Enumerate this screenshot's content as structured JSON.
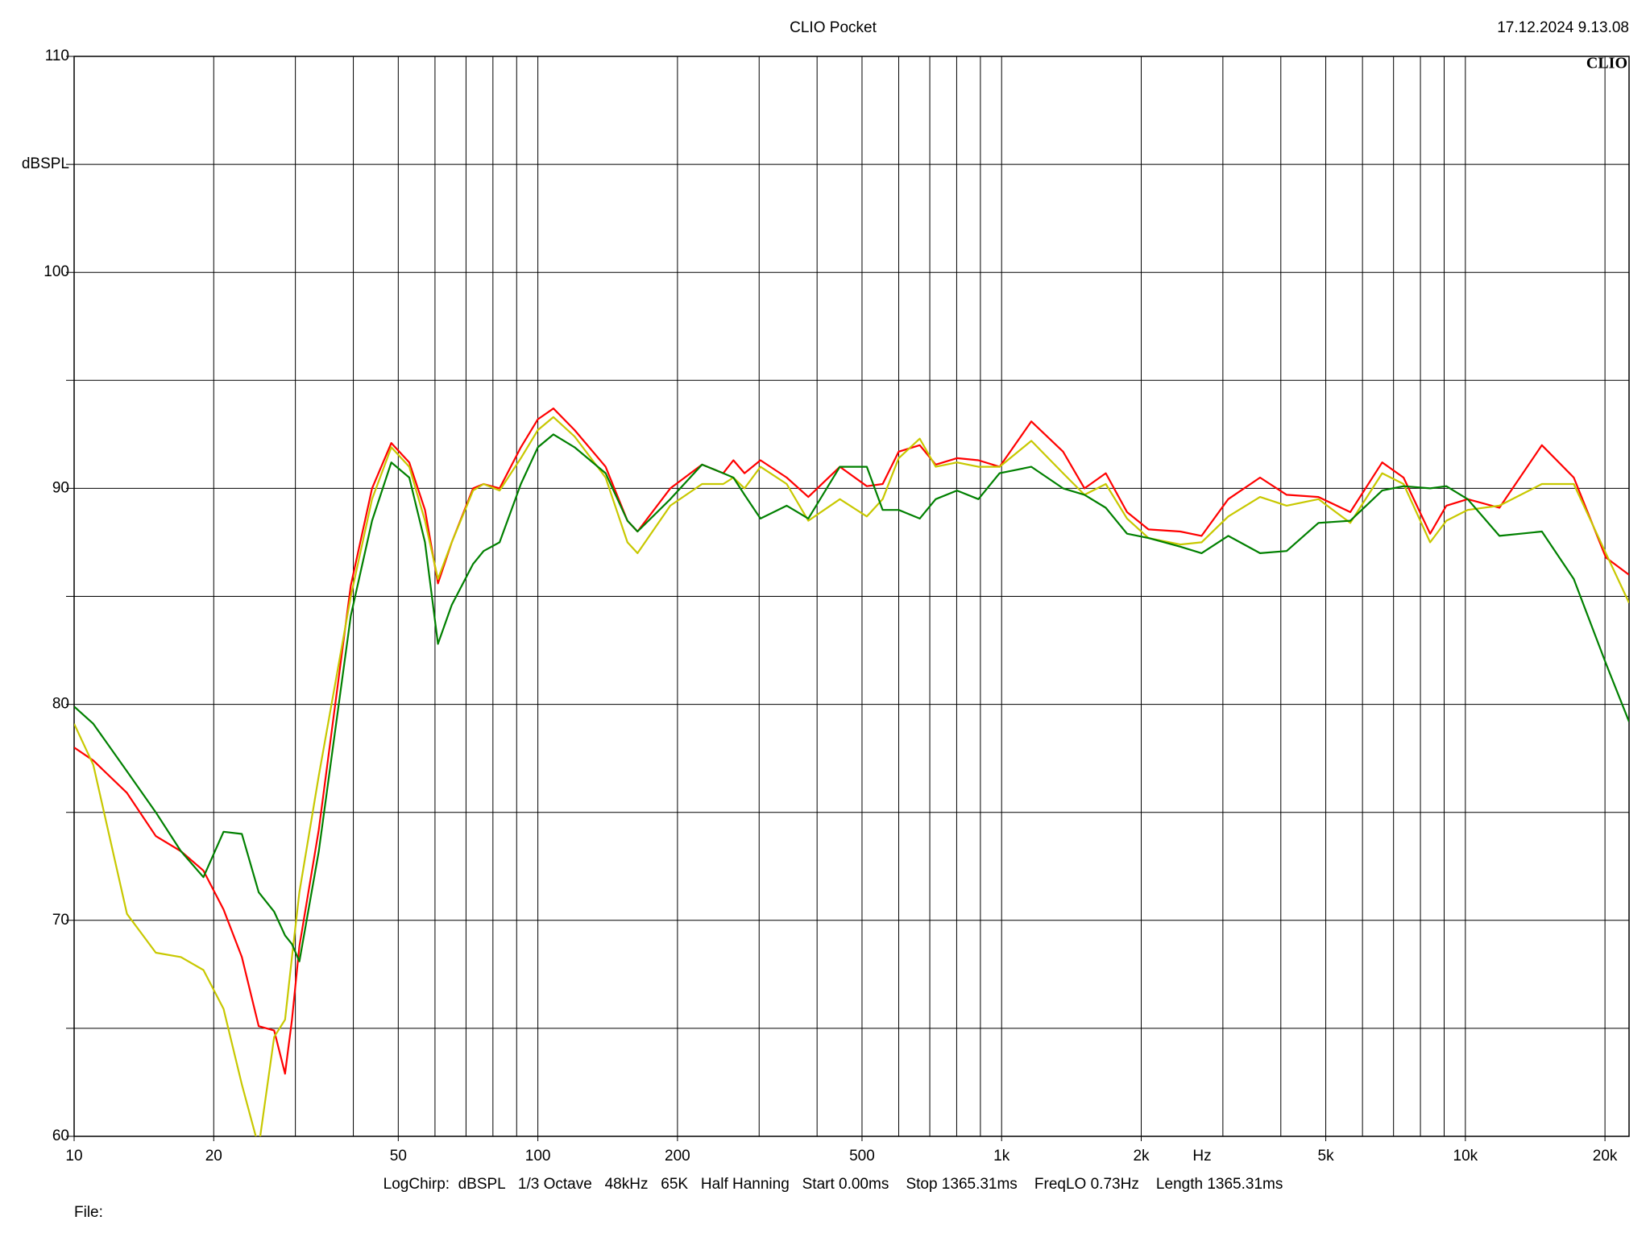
{
  "chart_data": {
    "type": "line",
    "title": "CLIO Pocket",
    "timestamp": "17.12.2024 9.13.08",
    "logo": "CLIO",
    "ylabel": "dBSPL",
    "xlabel": "Hz",
    "footer": "LogChirp:  dBSPL   1/3 Octave   48kHz   65K   Half Hanning   Start 0.00ms    Stop 1365.31ms    FreqLO 0.73Hz    Length 1365.31ms",
    "file_label": "File:",
    "xscale": "log",
    "grid": true,
    "xlim": [
      10,
      22540
    ],
    "ylim": [
      60,
      110
    ],
    "xticks": [
      10,
      20,
      50,
      100,
      200,
      500,
      {
        "value": 1000,
        "label": "1k"
      },
      {
        "value": 2000,
        "label": "2k"
      },
      {
        "value": 5000,
        "label": "5k"
      },
      {
        "value": 10000,
        "label": "10k"
      },
      {
        "value": 20000,
        "label": "20k"
      }
    ],
    "x_gridlines": [
      20,
      30,
      40,
      50,
      60,
      70,
      80,
      90,
      100,
      200,
      300,
      400,
      500,
      600,
      700,
      800,
      900,
      1000,
      2000,
      3000,
      4000,
      5000,
      6000,
      7000,
      8000,
      9000,
      10000,
      20000
    ],
    "yticks": [
      60,
      70,
      80,
      90,
      100,
      110
    ],
    "y_gridlines": [
      65,
      75,
      85,
      95,
      105
    ],
    "x": [
      10,
      11,
      13,
      15,
      17,
      19,
      21,
      23,
      25,
      27,
      28.5,
      29.5,
      30.6,
      33.7,
      39.5,
      43.9,
      48.3,
      52.8,
      57.1,
      60.9,
      65.2,
      72.5,
      76.4,
      82.7,
      91.9,
      100,
      108,
      120,
      140,
      156,
      164,
      193,
      226,
      251,
      264,
      279,
      302,
      344,
      383,
      448,
      512,
      554,
      600,
      666,
      721,
      801,
      891,
      990,
      1159,
      1357,
      1509,
      1677,
      1864,
      2073,
      2428,
      2699,
      3081,
      3608,
      4118,
      4822,
      5648,
      6618,
      7357,
      8395,
      9098,
      10115,
      11840,
      14620,
      17130,
      20090,
      22540
    ],
    "series": [
      {
        "name": "red",
        "color": "#ff0000",
        "values": [
          78.0,
          77.4,
          75.9,
          73.9,
          73.2,
          72.3,
          70.5,
          68.3,
          65.1,
          64.9,
          62.9,
          65.4,
          68.8,
          74.2,
          85.5,
          90.0,
          92.1,
          91.2,
          89.0,
          85.6,
          87.5,
          90.0,
          90.2,
          90.0,
          91.9,
          93.2,
          93.7,
          92.7,
          91.0,
          88.5,
          88.0,
          90.0,
          91.1,
          90.7,
          91.3,
          90.7,
          91.3,
          90.5,
          89.6,
          91.0,
          90.1,
          90.2,
          91.7,
          92.0,
          91.1,
          91.4,
          91.3,
          91.0,
          93.1,
          91.7,
          90.0,
          90.7,
          88.9,
          88.1,
          88.0,
          87.8,
          89.5,
          90.5,
          89.7,
          89.6,
          88.9,
          91.2,
          90.5,
          87.9,
          89.2,
          89.5,
          89.1,
          92.0,
          90.5,
          86.8,
          86.0
        ]
      },
      {
        "name": "yellow",
        "color": "#c8c800",
        "values": [
          79.1,
          77.2,
          70.3,
          68.5,
          68.3,
          67.7,
          65.9,
          62.4,
          59.5,
          64.6,
          65.4,
          68.3,
          71.3,
          76.7,
          85.0,
          89.5,
          91.9,
          91.0,
          88.5,
          85.8,
          87.5,
          89.9,
          90.2,
          89.9,
          91.4,
          92.7,
          93.3,
          92.4,
          90.5,
          87.5,
          87.0,
          89.2,
          90.2,
          90.2,
          90.5,
          90.0,
          91.0,
          90.2,
          88.5,
          89.5,
          88.7,
          89.5,
          91.4,
          92.3,
          91.0,
          91.2,
          91.0,
          91.0,
          92.2,
          90.7,
          89.7,
          90.2,
          88.6,
          87.7,
          87.4,
          87.5,
          88.7,
          89.6,
          89.2,
          89.5,
          88.4,
          90.7,
          90.2,
          87.5,
          88.5,
          89.0,
          89.2,
          90.2,
          90.2,
          87.0,
          84.7
        ]
      },
      {
        "name": "green",
        "color": "#008000",
        "values": [
          79.9,
          79.1,
          76.9,
          75.0,
          73.2,
          72.0,
          74.1,
          74.0,
          71.3,
          70.4,
          69.3,
          68.9,
          68.1,
          73.2,
          84.1,
          88.5,
          91.2,
          90.5,
          87.5,
          82.8,
          84.6,
          86.5,
          87.1,
          87.5,
          90.2,
          91.9,
          92.5,
          91.9,
          90.7,
          88.5,
          88.0,
          89.5,
          91.1,
          90.7,
          90.5,
          89.7,
          88.6,
          89.2,
          88.6,
          91.0,
          91.0,
          89.0,
          89.0,
          88.6,
          89.5,
          89.9,
          89.5,
          90.7,
          91.0,
          90.0,
          89.7,
          89.1,
          87.9,
          87.7,
          87.3,
          87.0,
          87.8,
          87.0,
          87.1,
          88.4,
          88.5,
          89.9,
          90.1,
          90.0,
          90.1,
          89.5,
          87.8,
          88.0,
          85.8,
          81.9,
          79.2
        ]
      }
    ]
  }
}
